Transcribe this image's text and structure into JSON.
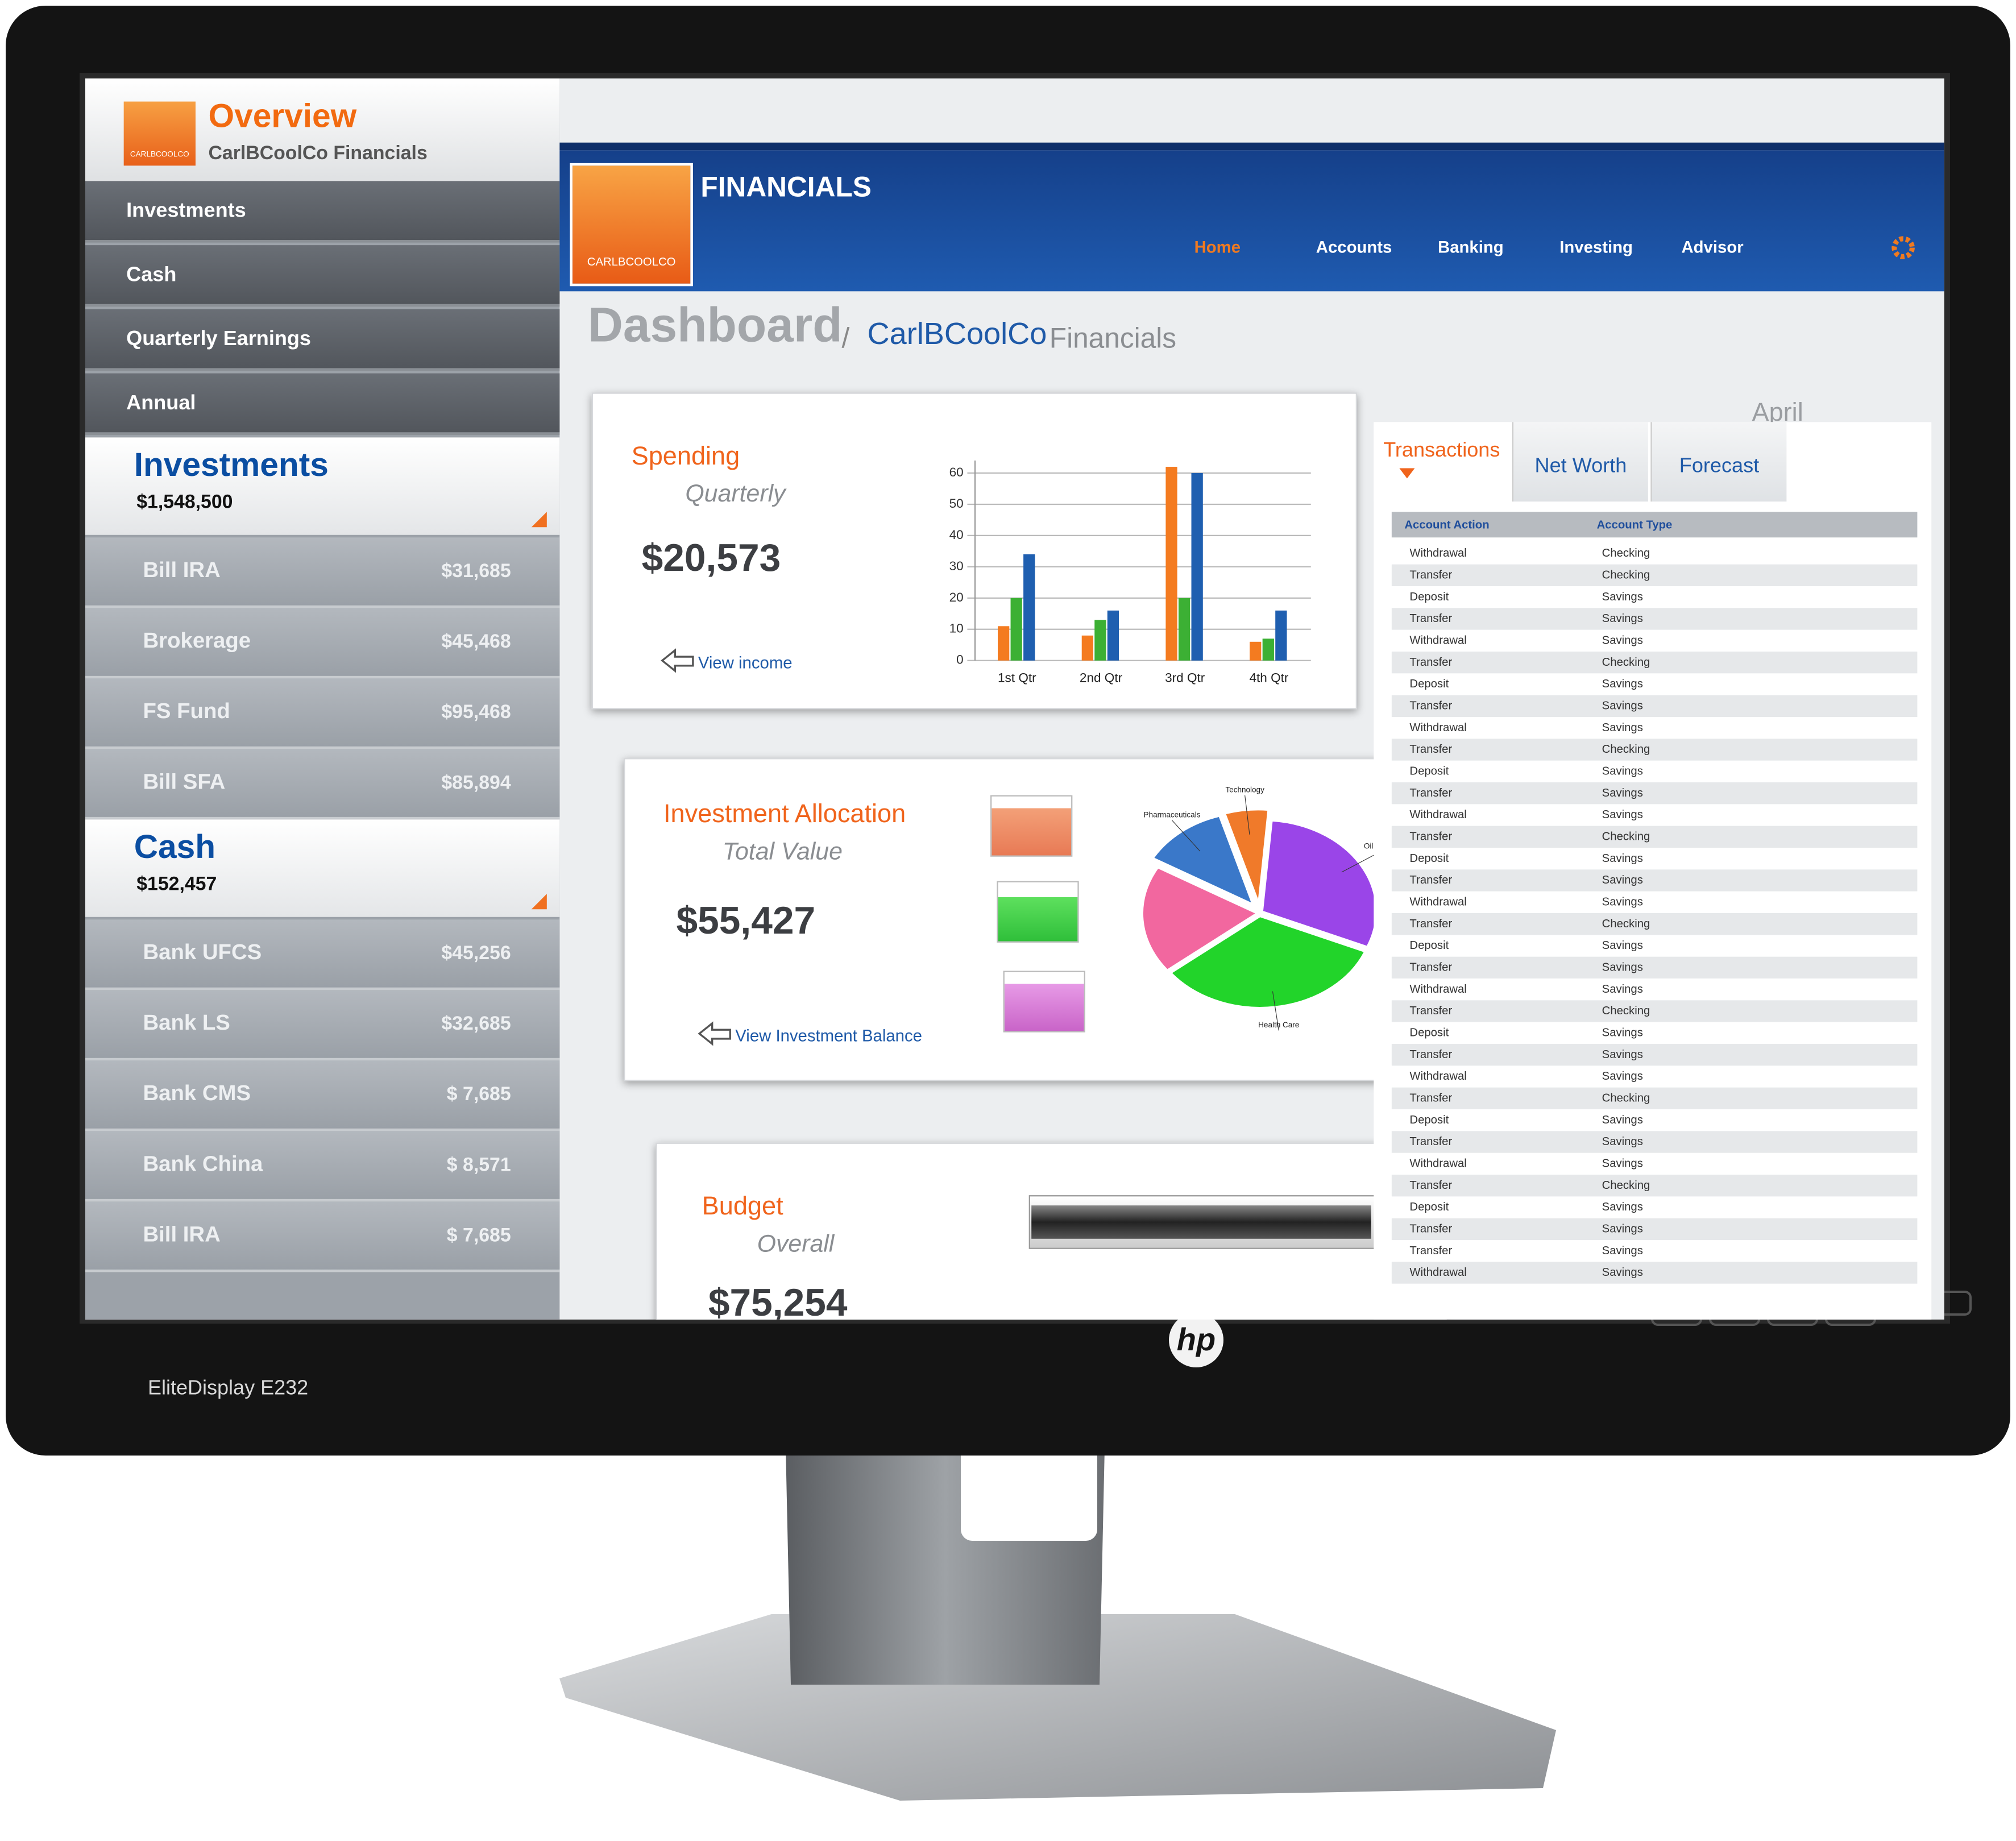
{
  "monitor": {
    "brand": "hp",
    "model": "EliteDisplay E232"
  },
  "sidebar": {
    "logo": "CARLBCOOLCO",
    "title": "Overview",
    "subtitle": "CarlBCoolCo Financials",
    "menu": [
      "Investments",
      "Cash",
      "Quarterly Earnings",
      "Annual"
    ],
    "sections": [
      {
        "title": "Investments",
        "total": "$1,548,500",
        "rows": [
          [
            "Bill IRA",
            "$31,685"
          ],
          [
            "Brokerage",
            "$45,468"
          ],
          [
            "FS Fund",
            "$95,468"
          ],
          [
            "Bill SFA",
            "$85,894"
          ]
        ]
      },
      {
        "title": "Cash",
        "total": "$152,457",
        "rows": [
          [
            "Bank UFCS",
            "$45,256"
          ],
          [
            "Bank LS",
            "$32,685"
          ],
          [
            "Bank CMS",
            "$ 7,685"
          ],
          [
            "Bank China",
            "$ 8,571"
          ],
          [
            "Bill IRA",
            "$ 7,685"
          ]
        ]
      }
    ]
  },
  "header": {
    "logo": "CARLBCOOLCO",
    "title": "FINANCIALS",
    "nav": [
      "Home",
      "Accounts",
      "Banking",
      "Investing",
      "Advisor"
    ]
  },
  "page": {
    "title": "Dashboard",
    "separator": "/",
    "breadcrumb": "CarlBCoolCo",
    "breadcrumb_rest": "Financials",
    "month": "April"
  },
  "cards": {
    "spending": {
      "title": "Spending",
      "subtitle": "Quarterly",
      "amount": "$20,573",
      "link": "View income"
    },
    "allocation": {
      "title": "Investment Allocation",
      "subtitle": "Total Value",
      "amount": "$55,427",
      "link": "View Investment Balance"
    },
    "budget": {
      "title": "Budget",
      "subtitle": "Overall",
      "amount": "$75,254"
    }
  },
  "transactions": {
    "tabs": [
      "Transactions",
      "Net Worth",
      "Forecast"
    ],
    "columns": [
      "Account Action",
      "Account Type"
    ],
    "rows": [
      [
        "Withdrawal",
        "Checking"
      ],
      [
        "Transfer",
        "Checking"
      ],
      [
        "Deposit",
        "Savings"
      ],
      [
        "Transfer",
        "Savings"
      ],
      [
        "Withdrawal",
        "Savings"
      ],
      [
        "Transfer",
        "Checking"
      ],
      [
        "Deposit",
        "Savings"
      ],
      [
        "Transfer",
        "Savings"
      ],
      [
        "Withdrawal",
        "Savings"
      ],
      [
        "Transfer",
        "Checking"
      ],
      [
        "Deposit",
        "Savings"
      ],
      [
        "Transfer",
        "Savings"
      ],
      [
        "Withdrawal",
        "Savings"
      ],
      [
        "Transfer",
        "Checking"
      ],
      [
        "Deposit",
        "Savings"
      ],
      [
        "Transfer",
        "Savings"
      ],
      [
        "Withdrawal",
        "Savings"
      ],
      [
        "Transfer",
        "Checking"
      ],
      [
        "Deposit",
        "Savings"
      ],
      [
        "Transfer",
        "Savings"
      ],
      [
        "Withdrawal",
        "Savings"
      ],
      [
        "Transfer",
        "Checking"
      ],
      [
        "Deposit",
        "Savings"
      ],
      [
        "Transfer",
        "Savings"
      ],
      [
        "Withdrawal",
        "Savings"
      ],
      [
        "Transfer",
        "Checking"
      ],
      [
        "Deposit",
        "Savings"
      ],
      [
        "Transfer",
        "Savings"
      ],
      [
        "Withdrawal",
        "Savings"
      ],
      [
        "Transfer",
        "Checking"
      ],
      [
        "Deposit",
        "Savings"
      ],
      [
        "Transfer",
        "Savings"
      ],
      [
        "Transfer",
        "Savings"
      ],
      [
        "Withdrawal",
        "Savings"
      ]
    ]
  },
  "chart_data": [
    {
      "type": "bar",
      "categories": [
        "1st Qtr",
        "2nd Qtr",
        "3rd Qtr",
        "4th Qtr"
      ],
      "series": [
        {
          "color": "#f47b20",
          "values": [
            11,
            8,
            62,
            6
          ]
        },
        {
          "color": "#3cb034",
          "values": [
            20,
            13,
            20,
            7
          ]
        },
        {
          "color": "#1f5fb0",
          "values": [
            34,
            16,
            60,
            16
          ]
        }
      ],
      "ylim": [
        0,
        64
      ],
      "yticks": [
        0,
        10,
        20,
        30,
        40,
        50,
        60
      ]
    },
    {
      "type": "pie",
      "categories": [
        "Pharmaceuticals",
        "Technology",
        "Oil & Gas",
        "Health Care",
        null
      ],
      "values": [
        12,
        6,
        30,
        33,
        19
      ],
      "colors": [
        "#3a78c9",
        "#f07a2a",
        "#9a45e8",
        "#22d42a",
        "#f2679f"
      ]
    }
  ]
}
